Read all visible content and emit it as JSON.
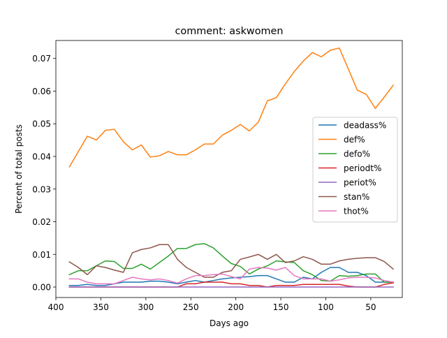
{
  "chart_data": {
    "type": "line",
    "title": "comment: askwomen",
    "xlabel": "Days ago",
    "ylabel": "Percent of total posts",
    "xlim": [
      400,
      15
    ],
    "ylim": [
      -0.0032,
      0.0755
    ],
    "x_inverted": true,
    "grid": false,
    "legend_position": "center-right",
    "xticks": [
      400,
      350,
      300,
      250,
      200,
      150,
      100,
      50
    ],
    "xtick_labels": [
      "400",
      "350",
      "300",
      "250",
      "200",
      "150",
      "100",
      "50"
    ],
    "yticks": [
      0.0,
      0.01,
      0.02,
      0.03,
      0.04,
      0.05,
      0.06,
      0.07
    ],
    "ytick_labels": [
      "0.00",
      "0.01",
      "0.02",
      "0.03",
      "0.04",
      "0.05",
      "0.06",
      "0.07"
    ],
    "x": [
      385,
      375,
      365,
      355,
      345,
      335,
      325,
      315,
      305,
      295,
      285,
      275,
      265,
      255,
      245,
      235,
      225,
      215,
      205,
      195,
      185,
      175,
      165,
      155,
      145,
      135,
      125,
      115,
      105,
      95,
      85,
      75,
      65,
      55,
      45,
      35,
      25
    ],
    "series": [
      {
        "name": "deadass%",
        "color": "#1f77b4",
        "values": [
          0.0005,
          0.0005,
          0.0008,
          0.0005,
          0.0005,
          0.001,
          0.0015,
          0.0015,
          0.0015,
          0.0018,
          0.0018,
          0.0015,
          0.001,
          0.0015,
          0.002,
          0.0015,
          0.002,
          0.0025,
          0.0028,
          0.003,
          0.0032,
          0.0035,
          0.0035,
          0.0025,
          0.0015,
          0.0015,
          0.003,
          0.0025,
          0.0045,
          0.006,
          0.006,
          0.0045,
          0.0045,
          0.0035,
          0.0015,
          0.0015,
          0.0015
        ]
      },
      {
        "name": "def%",
        "color": "#ff7f0e",
        "values": [
          0.0368,
          0.0415,
          0.0462,
          0.045,
          0.048,
          0.0483,
          0.0445,
          0.042,
          0.0435,
          0.0398,
          0.0402,
          0.0415,
          0.0405,
          0.0405,
          0.042,
          0.0438,
          0.0438,
          0.0465,
          0.048,
          0.0498,
          0.0478,
          0.0505,
          0.057,
          0.058,
          0.0622,
          0.066,
          0.0692,
          0.0718,
          0.0705,
          0.0725,
          0.0732,
          0.0668,
          0.0603,
          0.059,
          0.0547,
          0.0582,
          0.0618
        ]
      },
      {
        "name": "defo%",
        "color": "#2ca02c",
        "values": [
          0.0038,
          0.005,
          0.005,
          0.0065,
          0.008,
          0.0078,
          0.0057,
          0.0057,
          0.007,
          0.0055,
          0.0075,
          0.0095,
          0.0118,
          0.0118,
          0.013,
          0.0133,
          0.012,
          0.0095,
          0.0072,
          0.0063,
          0.004,
          0.0055,
          0.0065,
          0.008,
          0.0077,
          0.0075,
          0.005,
          0.0038,
          0.002,
          0.0018,
          0.0035,
          0.0033,
          0.0035,
          0.004,
          0.004,
          0.0015,
          0.0015
        ]
      },
      {
        "name": "periodt%",
        "color": "#d62728",
        "values": [
          0.0,
          0.0,
          0.0,
          0.0,
          0.0,
          0.0,
          0.0,
          0.0,
          0.0,
          0.0,
          0.0,
          0.0,
          0.0,
          0.001,
          0.001,
          0.0015,
          0.0015,
          0.0015,
          0.001,
          0.001,
          0.0005,
          0.0005,
          0.0,
          0.0005,
          0.0005,
          0.0005,
          0.0008,
          0.0008,
          0.0008,
          0.0008,
          0.0008,
          0.0003,
          0.0,
          0.0,
          0.0,
          0.0008,
          0.0013
        ]
      },
      {
        "name": "periot%",
        "color": "#9467bd",
        "values": [
          0.0,
          0.0,
          0.0,
          0.0,
          0.0,
          0.0,
          0.0,
          0.0,
          0.0,
          0.0,
          0.0,
          0.0,
          0.0,
          0.0,
          0.0,
          0.0,
          0.0,
          0.0,
          0.0,
          0.0,
          0.0,
          0.0,
          0.0,
          0.0,
          0.0,
          0.0,
          0.0,
          0.0,
          0.0,
          0.0,
          0.0,
          0.0,
          0.0,
          0.0,
          0.0,
          0.0,
          0.0
        ]
      },
      {
        "name": "stan%",
        "color": "#8c564b",
        "values": [
          0.0077,
          0.006,
          0.0038,
          0.0065,
          0.006,
          0.0052,
          0.0045,
          0.0105,
          0.0115,
          0.012,
          0.013,
          0.013,
          0.0085,
          0.006,
          0.0045,
          0.003,
          0.003,
          0.0045,
          0.005,
          0.0085,
          0.0092,
          0.01,
          0.0085,
          0.01,
          0.0075,
          0.008,
          0.0093,
          0.0085,
          0.007,
          0.007,
          0.008,
          0.0085,
          0.0088,
          0.009,
          0.009,
          0.0078,
          0.0055
        ]
      },
      {
        "name": "thot%",
        "color": "#e377c2",
        "values": [
          0.0025,
          0.0025,
          0.0015,
          0.001,
          0.001,
          0.001,
          0.002,
          0.003,
          0.0025,
          0.0022,
          0.0025,
          0.002,
          0.0012,
          0.0025,
          0.0035,
          0.0035,
          0.0038,
          0.004,
          0.0032,
          0.0025,
          0.0055,
          0.006,
          0.0058,
          0.0052,
          0.006,
          0.0035,
          0.0025,
          0.0025,
          0.0025,
          0.0018,
          0.0022,
          0.0028,
          0.003,
          0.003,
          0.0028,
          0.002,
          0.0015
        ]
      }
    ]
  }
}
